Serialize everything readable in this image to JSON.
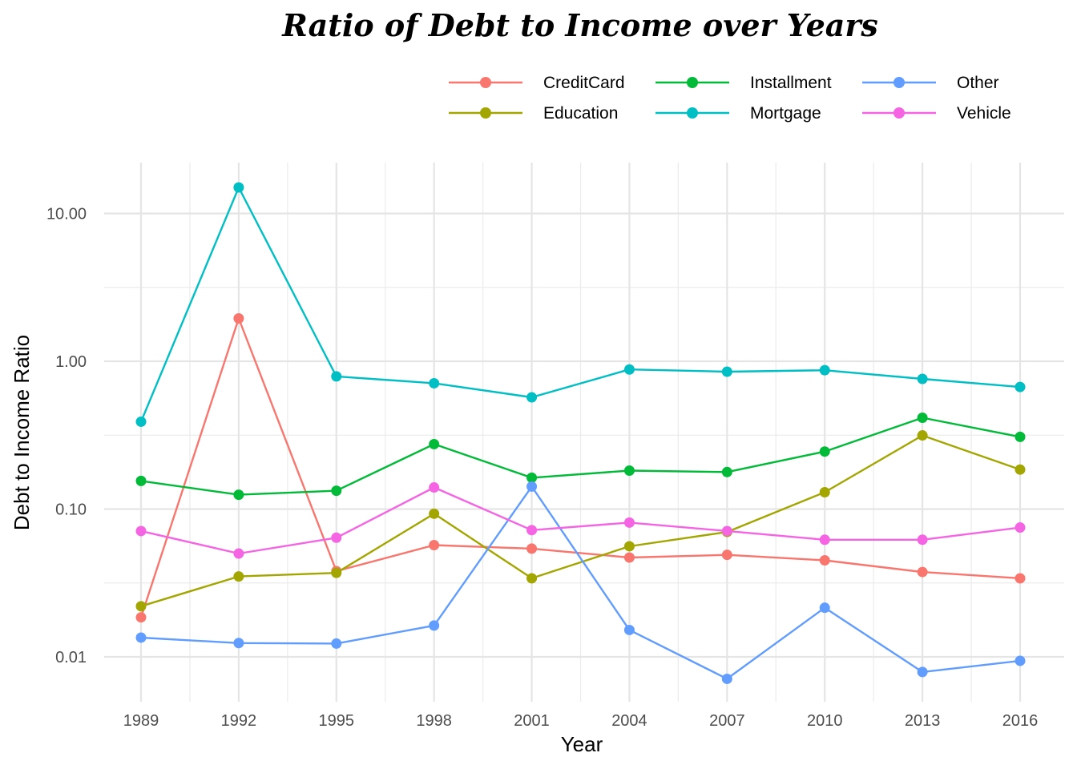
{
  "chart_data": {
    "type": "line",
    "title": "Ratio of Debt to Income over Years",
    "xlabel": "Year",
    "ylabel": "Debt to Income Ratio",
    "x": [
      1989,
      1992,
      1995,
      1998,
      2001,
      2004,
      2007,
      2010,
      2013,
      2016
    ],
    "x_tick_labels": [
      "1989",
      "1992",
      "1995",
      "1998",
      "2001",
      "2004",
      "2007",
      "2010",
      "2013",
      "2016"
    ],
    "y_scale": "log10",
    "ylim": [
      0.005,
      20
    ],
    "y_ticks": [
      0.01,
      0.1,
      1,
      10
    ],
    "y_tick_labels": [
      "0.01",
      "0.10",
      "1.00",
      "10.00"
    ],
    "grid": true,
    "legend_position": "top-right",
    "series": [
      {
        "name": "CreditCard",
        "color": "#F8766D",
        "values": [
          0.0185,
          1.95,
          0.038,
          0.057,
          0.054,
          0.047,
          0.049,
          0.045,
          0.0375,
          0.034
        ]
      },
      {
        "name": "Education",
        "color": "#A3A500",
        "values": [
          0.022,
          0.035,
          0.037,
          0.093,
          0.034,
          0.056,
          0.07,
          0.13,
          0.315,
          0.185
        ]
      },
      {
        "name": "Installment",
        "color": "#00BA38",
        "values": [
          0.155,
          0.125,
          0.133,
          0.275,
          0.163,
          0.182,
          0.178,
          0.245,
          0.415,
          0.308
        ]
      },
      {
        "name": "Mortgage",
        "color": "#00BFC4",
        "values": [
          0.39,
          15.0,
          0.79,
          0.71,
          0.57,
          0.88,
          0.85,
          0.87,
          0.76,
          0.67
        ]
      },
      {
        "name": "Other",
        "color": "#619CFF",
        "values": [
          0.0135,
          0.0124,
          0.0123,
          0.0163,
          0.142,
          0.0152,
          0.0071,
          0.0215,
          0.0079,
          0.0094
        ]
      },
      {
        "name": "Vehicle",
        "color": "#F564E3",
        "values": [
          0.071,
          0.05,
          0.064,
          0.14,
          0.072,
          0.081,
          0.071,
          0.062,
          0.062,
          0.075
        ]
      }
    ]
  }
}
